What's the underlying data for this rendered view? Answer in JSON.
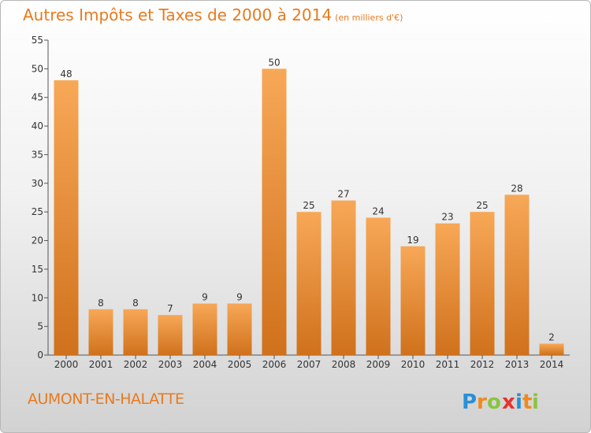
{
  "header": {
    "title": "Autres Impôts et Taxes de 2000 à 2014",
    "subtitle": "(en milliers d'€)"
  },
  "footer": {
    "city": "AUMONT-EN-HALATTE",
    "logo_text": "Proxiti"
  },
  "colors": {
    "accent": "#e87a1e",
    "bar_light": "#f7a857",
    "bar_dark": "#d0711c"
  },
  "chart_data": {
    "type": "bar",
    "title": "Autres Impôts et Taxes de 2000 à 2014",
    "subtitle": "(en milliers d'€)",
    "xlabel": "",
    "ylabel": "",
    "categories": [
      "2000",
      "2001",
      "2002",
      "2003",
      "2004",
      "2005",
      "2006",
      "2007",
      "2008",
      "2009",
      "2010",
      "2011",
      "2012",
      "2013",
      "2014"
    ],
    "values": [
      48,
      8,
      8,
      7,
      9,
      9,
      50,
      25,
      27,
      24,
      19,
      23,
      25,
      28,
      2
    ],
    "ylim": [
      0,
      55
    ],
    "yticks": [
      0,
      5,
      10,
      15,
      20,
      25,
      30,
      35,
      40,
      45,
      50,
      55
    ],
    "grid": false,
    "legend": "none"
  }
}
